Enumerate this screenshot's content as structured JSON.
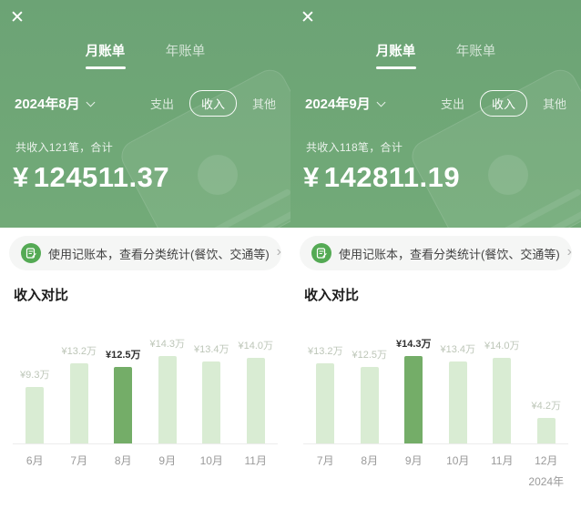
{
  "icons": {
    "close": "✕",
    "chevron_right": "›"
  },
  "colors": {
    "header_green": "#6fa878",
    "bar_light": "#d9ecd3",
    "bar_highlight": "#74ad68",
    "banner_bg": "#f5f6f5",
    "ledger_icon_green": "#54aa54"
  },
  "panels": [
    {
      "tabs": [
        {
          "label": "月账单"
        },
        {
          "label": "年账单"
        }
      ],
      "active_tab": "月账单",
      "month_selector": {
        "label": "2024年8月"
      },
      "filters": [
        {
          "label": "支出"
        },
        {
          "label": "收入"
        },
        {
          "label": "其他"
        }
      ],
      "active_filter": "收入",
      "summary": "共收入121笔，合计",
      "amount": {
        "currency": "¥",
        "value": "124511.37"
      },
      "banner": {
        "text": "使用记账本，查看分类统计(餐饮、交通等)"
      },
      "section_title": "收入对比",
      "chart_data": {
        "type": "bar",
        "title": "收入对比",
        "categories": [
          "6月",
          "7月",
          "8月",
          "9月",
          "10月",
          "11月"
        ],
        "values": [
          9.3,
          13.2,
          12.5,
          14.3,
          13.4,
          14.0
        ],
        "value_labels": [
          "¥9.3万",
          "¥13.2万",
          "¥12.5万",
          "¥14.3万",
          "¥13.4万",
          "¥14.0万"
        ],
        "unit": "万",
        "highlight_index": 2,
        "ylim": [
          0,
          16
        ],
        "grid": false,
        "year_label": ""
      }
    },
    {
      "tabs": [
        {
          "label": "月账单"
        },
        {
          "label": "年账单"
        }
      ],
      "active_tab": "月账单",
      "month_selector": {
        "label": "2024年9月"
      },
      "filters": [
        {
          "label": "支出"
        },
        {
          "label": "收入"
        },
        {
          "label": "其他"
        }
      ],
      "active_filter": "收入",
      "summary": "共收入118笔，合计",
      "amount": {
        "currency": "¥",
        "value": "142811.19"
      },
      "banner": {
        "text": "使用记账本，查看分类统计(餐饮、交通等)"
      },
      "section_title": "收入对比",
      "chart_data": {
        "type": "bar",
        "title": "收入对比",
        "categories": [
          "7月",
          "8月",
          "9月",
          "10月",
          "11月",
          "12月"
        ],
        "values": [
          13.2,
          12.5,
          14.3,
          13.4,
          14.0,
          4.2
        ],
        "value_labels": [
          "¥13.2万",
          "¥12.5万",
          "¥14.3万",
          "¥13.4万",
          "¥14.0万",
          "¥4.2万"
        ],
        "unit": "万",
        "highlight_index": 2,
        "ylim": [
          0,
          16
        ],
        "grid": false,
        "year_label": "2024年"
      }
    }
  ]
}
